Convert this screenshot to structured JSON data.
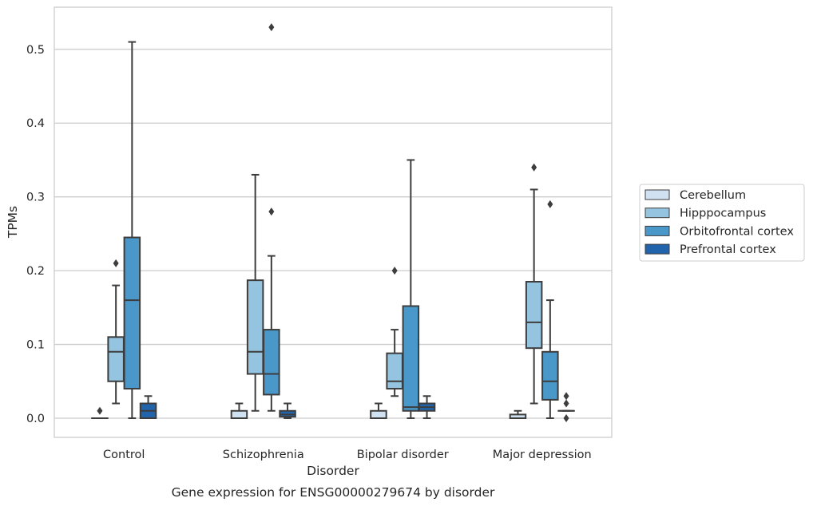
{
  "chart_data": {
    "type": "box",
    "title": "Gene expression for ENSG00000279674 by disorder",
    "xlabel": "Disorder",
    "ylabel": "TPMs",
    "ylim": [
      -0.026,
      0.556
    ],
    "yticks": [
      "0.0",
      "0.1",
      "0.2",
      "0.3",
      "0.4",
      "0.5"
    ],
    "yticks_values": [
      0.0,
      0.1,
      0.2,
      0.3,
      0.4,
      0.5
    ],
    "grid": "horizontal",
    "legend_position": "right",
    "categories": [
      "Control",
      "Schizophrenia",
      "Bipolar disorder",
      "Major depression"
    ],
    "series": [
      {
        "name": "Cerebellum",
        "color": "#d0e1f2",
        "boxes": [
          {
            "whislo": 0.0,
            "q1": 0.0,
            "med": 0.0,
            "q3": 0.0,
            "whishi": 0.0,
            "fliers": [
              0.01
            ]
          },
          {
            "whislo": 0.0,
            "q1": 0.0,
            "med": 0.0,
            "q3": 0.01,
            "whishi": 0.02,
            "fliers": []
          },
          {
            "whislo": 0.0,
            "q1": 0.0,
            "med": 0.0,
            "q3": 0.01,
            "whishi": 0.02,
            "fliers": []
          },
          {
            "whislo": 0.0,
            "q1": 0.0,
            "med": 0.0,
            "q3": 0.005,
            "whishi": 0.01,
            "fliers": []
          }
        ]
      },
      {
        "name": "Hipppocampus",
        "color": "#94c4df",
        "boxes": [
          {
            "whislo": 0.02,
            "q1": 0.05,
            "med": 0.09,
            "q3": 0.11,
            "whishi": 0.18,
            "fliers": [
              0.21
            ]
          },
          {
            "whislo": 0.01,
            "q1": 0.06,
            "med": 0.09,
            "q3": 0.187,
            "whishi": 0.33,
            "fliers": []
          },
          {
            "whislo": 0.03,
            "q1": 0.04,
            "med": 0.05,
            "q3": 0.088,
            "whishi": 0.12,
            "fliers": [
              0.2
            ]
          },
          {
            "whislo": 0.02,
            "q1": 0.095,
            "med": 0.13,
            "q3": 0.185,
            "whishi": 0.31,
            "fliers": [
              0.34
            ]
          }
        ]
      },
      {
        "name": "Orbitofrontal cortex",
        "color": "#4a98c9",
        "boxes": [
          {
            "whislo": 0.0,
            "q1": 0.04,
            "med": 0.16,
            "q3": 0.245,
            "whishi": 0.51,
            "fliers": []
          },
          {
            "whislo": 0.01,
            "q1": 0.032,
            "med": 0.06,
            "q3": 0.12,
            "whishi": 0.22,
            "fliers": [
              0.28,
              0.53
            ]
          },
          {
            "whislo": 0.0,
            "q1": 0.01,
            "med": 0.015,
            "q3": 0.152,
            "whishi": 0.35,
            "fliers": []
          },
          {
            "whislo": 0.0,
            "q1": 0.025,
            "med": 0.05,
            "q3": 0.09,
            "whishi": 0.16,
            "fliers": [
              0.29
            ]
          }
        ]
      },
      {
        "name": "Prefrontal cortex",
        "color": "#2164ab",
        "boxes": [
          {
            "whislo": 0.0,
            "q1": 0.0,
            "med": 0.01,
            "q3": 0.02,
            "whishi": 0.03,
            "fliers": []
          },
          {
            "whislo": 0.0,
            "q1": 0.002,
            "med": 0.005,
            "q3": 0.01,
            "whishi": 0.02,
            "fliers": []
          },
          {
            "whislo": 0.0,
            "q1": 0.01,
            "med": 0.015,
            "q3": 0.02,
            "whishi": 0.03,
            "fliers": []
          },
          {
            "whislo": 0.01,
            "q1": 0.01,
            "med": 0.01,
            "q3": 0.01,
            "whishi": 0.01,
            "fliers": [
              0.0,
              0.02,
              0.03
            ]
          }
        ]
      }
    ]
  }
}
